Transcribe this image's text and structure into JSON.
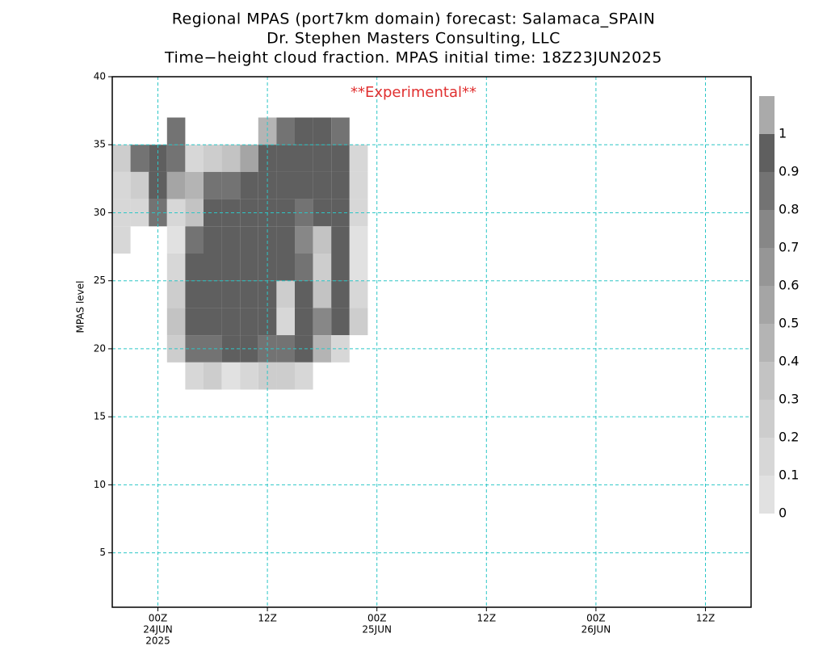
{
  "chart_data": {
    "type": "time-height-contour",
    "title": "Regional MPAS (port7km domain) forecast: Salamaca_SPAIN",
    "subtitle": "Dr. Stephen Masters Consulting, LLC",
    "subtitle2": "Time−height cloud fraction.   MPAS initial time: 18Z23JUN2025",
    "annotation": "**Experimental**",
    "ylabel": "MPAS level",
    "x": [
      -4,
      -2,
      0,
      2,
      4,
      6,
      8,
      10,
      12,
      14,
      16,
      18,
      20,
      22,
      24
    ],
    "levels": [
      36,
      34,
      32,
      30,
      28,
      26,
      24,
      22,
      20,
      18
    ],
    "z": [
      [
        0,
        0,
        0,
        0.9,
        0,
        0,
        0,
        0,
        0.5,
        0.9,
        1,
        1,
        0.9,
        0,
        0
      ],
      [
        0.3,
        0.9,
        1,
        0.9,
        0.2,
        0.3,
        0.4,
        0.6,
        1,
        1,
        1,
        1,
        1,
        0.2,
        0
      ],
      [
        0.2,
        0.3,
        1,
        0.6,
        0.5,
        0.9,
        0.9,
        1,
        1,
        1,
        1,
        1,
        1,
        0.2,
        0
      ],
      [
        0.2,
        0.2,
        0.9,
        0.2,
        0.4,
        1,
        1,
        1,
        1,
        1,
        0.9,
        1,
        1,
        0.2,
        0
      ],
      [
        0.2,
        0,
        0,
        0.1,
        0.9,
        1,
        1,
        1,
        1,
        1,
        0.8,
        0.4,
        1,
        0.1,
        0
      ],
      [
        0,
        0,
        0,
        0.2,
        1,
        1,
        1,
        1,
        1,
        1,
        0.9,
        0.3,
        1,
        0.1,
        0
      ],
      [
        0,
        0,
        0,
        0.3,
        1,
        1,
        1,
        1,
        1,
        0.3,
        1,
        0.4,
        1,
        0.2,
        0
      ],
      [
        0,
        0,
        0,
        0.4,
        1,
        1,
        1,
        1,
        1,
        0.2,
        1,
        0.8,
        1,
        0.3,
        0
      ],
      [
        0,
        0,
        0,
        0.3,
        0.9,
        0.9,
        1,
        1,
        0.9,
        0.9,
        1,
        0.5,
        0.2,
        0,
        0
      ],
      [
        0,
        0,
        0,
        0,
        0.2,
        0.3,
        0.1,
        0.2,
        0.3,
        0.3,
        0.2,
        0,
        0,
        0,
        0
      ]
    ],
    "xlim": [
      -5,
      65
    ],
    "ylim": [
      1,
      40
    ],
    "xticks": [
      {
        "value": 0,
        "label": [
          "00Z",
          "24JUN",
          "2025"
        ]
      },
      {
        "value": 12,
        "label": [
          "12Z"
        ]
      },
      {
        "value": 24,
        "label": [
          "00Z",
          "25JUN"
        ]
      },
      {
        "value": 36,
        "label": [
          "12Z"
        ]
      },
      {
        "value": 48,
        "label": [
          "00Z",
          "26JUN"
        ]
      },
      {
        "value": 60,
        "label": [
          "12Z"
        ]
      }
    ],
    "yticks": [
      5,
      10,
      15,
      20,
      25,
      30,
      35,
      40
    ],
    "grid": true,
    "colors": [
      "#e1e1e1",
      "#d7d7d7",
      "#cdcdcd",
      "#c3c3c3",
      "#b4b4b4",
      "#a5a5a5",
      "#969696",
      "#878787",
      "#737373",
      "#5f5f5f",
      "#aaaaaa"
    ],
    "colorbar_ticks": [
      0,
      0.1,
      0.2,
      0.3,
      0.4,
      0.5,
      0.6,
      0.7,
      0.8,
      0.9,
      1
    ]
  }
}
